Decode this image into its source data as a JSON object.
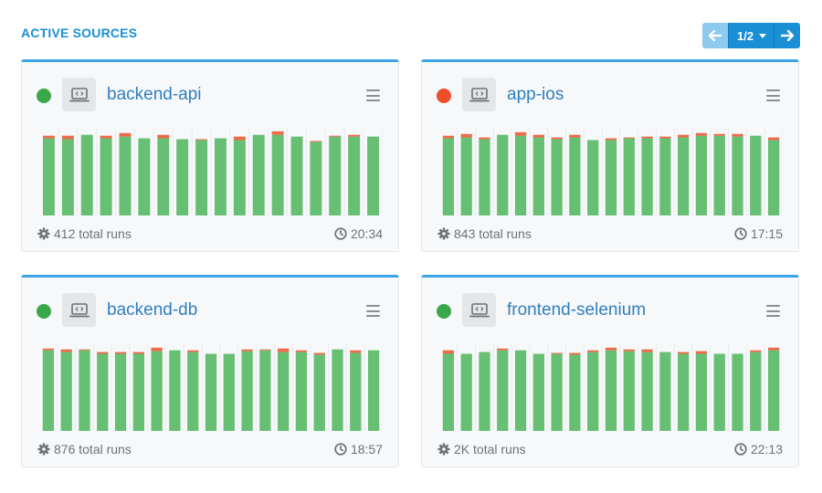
{
  "header": {
    "title": "ACTIVE SOURCES"
  },
  "pager": {
    "label": "1/2"
  },
  "colors": {
    "green": "#3aa84a",
    "red": "#ee4e2a",
    "bar_pass": "#66bf73",
    "bar_fail": "#ec6b4a"
  },
  "cards": [
    {
      "name": "backend-api",
      "status": "green",
      "runs": "412 total runs",
      "time": "20:34",
      "bars": [
        {
          "pass": 0.88,
          "fail": 0.03
        },
        {
          "pass": 0.87,
          "fail": 0.04
        },
        {
          "pass": 0.92,
          "fail": 0.0
        },
        {
          "pass": 0.88,
          "fail": 0.03
        },
        {
          "pass": 0.9,
          "fail": 0.04
        },
        {
          "pass": 0.88,
          "fail": 0.0
        },
        {
          "pass": 0.88,
          "fail": 0.04
        },
        {
          "pass": 0.87,
          "fail": 0.0
        },
        {
          "pass": 0.86,
          "fail": 0.01
        },
        {
          "pass": 0.88,
          "fail": 0.0
        },
        {
          "pass": 0.86,
          "fail": 0.04
        },
        {
          "pass": 0.92,
          "fail": 0.0
        },
        {
          "pass": 0.92,
          "fail": 0.04
        },
        {
          "pass": 0.9,
          "fail": 0.0
        },
        {
          "pass": 0.84,
          "fail": 0.01
        },
        {
          "pass": 0.9,
          "fail": 0.01
        },
        {
          "pass": 0.9,
          "fail": 0.02
        },
        {
          "pass": 0.9,
          "fail": 0.0
        }
      ]
    },
    {
      "name": "app-ios",
      "status": "red",
      "runs": "843 total runs",
      "time": "17:15",
      "bars": [
        {
          "pass": 0.88,
          "fail": 0.03
        },
        {
          "pass": 0.89,
          "fail": 0.04
        },
        {
          "pass": 0.87,
          "fail": 0.02
        },
        {
          "pass": 0.92,
          "fail": 0.0
        },
        {
          "pass": 0.91,
          "fail": 0.04
        },
        {
          "pass": 0.89,
          "fail": 0.03
        },
        {
          "pass": 0.87,
          "fail": 0.02
        },
        {
          "pass": 0.89,
          "fail": 0.03
        },
        {
          "pass": 0.86,
          "fail": 0.0
        },
        {
          "pass": 0.86,
          "fail": 0.02
        },
        {
          "pass": 0.88,
          "fail": 0.01
        },
        {
          "pass": 0.88,
          "fail": 0.02
        },
        {
          "pass": 0.88,
          "fail": 0.02
        },
        {
          "pass": 0.89,
          "fail": 0.03
        },
        {
          "pass": 0.91,
          "fail": 0.03
        },
        {
          "pass": 0.91,
          "fail": 0.02
        },
        {
          "pass": 0.9,
          "fail": 0.03
        },
        {
          "pass": 0.91,
          "fail": 0.0
        },
        {
          "pass": 0.86,
          "fail": 0.03
        }
      ]
    },
    {
      "name": "backend-db",
      "status": "green",
      "runs": "876 total runs",
      "time": "18:57",
      "bars": [
        {
          "pass": 0.92,
          "fail": 0.02
        },
        {
          "pass": 0.9,
          "fail": 0.03
        },
        {
          "pass": 0.92,
          "fail": 0.01
        },
        {
          "pass": 0.88,
          "fail": 0.02
        },
        {
          "pass": 0.88,
          "fail": 0.02
        },
        {
          "pass": 0.88,
          "fail": 0.02
        },
        {
          "pass": 0.91,
          "fail": 0.04
        },
        {
          "pass": 0.92,
          "fail": 0.0
        },
        {
          "pass": 0.9,
          "fail": 0.02
        },
        {
          "pass": 0.88,
          "fail": 0.0
        },
        {
          "pass": 0.88,
          "fail": 0.0
        },
        {
          "pass": 0.91,
          "fail": 0.02
        },
        {
          "pass": 0.92,
          "fail": 0.01
        },
        {
          "pass": 0.9,
          "fail": 0.04
        },
        {
          "pass": 0.9,
          "fail": 0.02
        },
        {
          "pass": 0.87,
          "fail": 0.02
        },
        {
          "pass": 0.93,
          "fail": 0.0
        },
        {
          "pass": 0.89,
          "fail": 0.03
        },
        {
          "pass": 0.92,
          "fail": 0.0
        }
      ]
    },
    {
      "name": "frontend-selenium",
      "status": "green",
      "runs": "2K total runs",
      "time": "22:13",
      "bars": [
        {
          "pass": 0.88,
          "fail": 0.04
        },
        {
          "pass": 0.88,
          "fail": 0.0
        },
        {
          "pass": 0.9,
          "fail": 0.0
        },
        {
          "pass": 0.92,
          "fail": 0.02
        },
        {
          "pass": 0.92,
          "fail": 0.0
        },
        {
          "pass": 0.88,
          "fail": 0.0
        },
        {
          "pass": 0.88,
          "fail": 0.01
        },
        {
          "pass": 0.87,
          "fail": 0.02
        },
        {
          "pass": 0.9,
          "fail": 0.02
        },
        {
          "pass": 0.92,
          "fail": 0.03
        },
        {
          "pass": 0.91,
          "fail": 0.02
        },
        {
          "pass": 0.9,
          "fail": 0.03
        },
        {
          "pass": 0.9,
          "fail": 0.0
        },
        {
          "pass": 0.88,
          "fail": 0.02
        },
        {
          "pass": 0.88,
          "fail": 0.03
        },
        {
          "pass": 0.88,
          "fail": 0.0
        },
        {
          "pass": 0.88,
          "fail": 0.0
        },
        {
          "pass": 0.9,
          "fail": 0.02
        },
        {
          "pass": 0.92,
          "fail": 0.03
        }
      ]
    }
  ]
}
